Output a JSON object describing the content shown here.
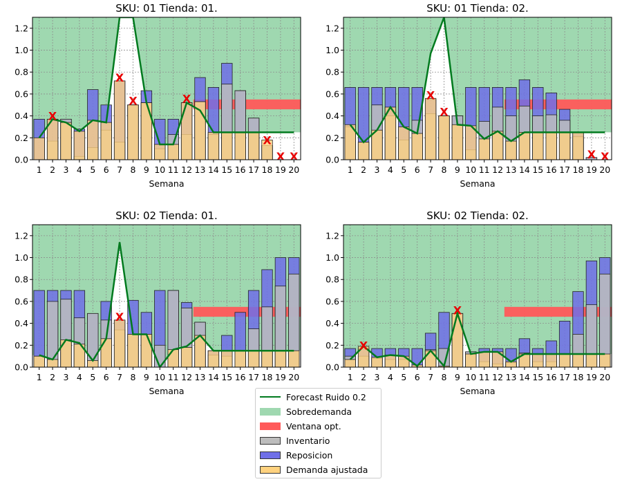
{
  "colors": {
    "forecast": "#007a1e",
    "overdemand": "#9fd8b0",
    "window": "#ff5a5a",
    "inventory": "#bdbdbd",
    "replenishment": "#6f6fe8",
    "demand": "#ffd27f",
    "marker": "#e80000",
    "grid": "#8c8c8c"
  },
  "legend": {
    "forecast": "Forecast Ruido 0.2",
    "overdemand": "Sobredemanda",
    "window": "Ventana opt.",
    "inventory": "Inventario",
    "replenishment": "Reposicion",
    "demand": "Demanda ajustada"
  },
  "marker_symbol": "X",
  "chart_data": [
    {
      "type": "bar",
      "title": "SKU: 01 Tienda: 01.",
      "xlabel": "Semana",
      "ylabel": "",
      "ylim": [
        0,
        1.3
      ],
      "yticks": [
        "0.0",
        "0.2",
        "0.4",
        "0.6",
        "0.8",
        "1.0",
        "1.2"
      ],
      "categories": [
        "1",
        "2",
        "3",
        "4",
        "5",
        "6",
        "7",
        "8",
        "9",
        "10",
        "11",
        "12",
        "13",
        "14",
        "15",
        "16",
        "17",
        "18",
        "19",
        "20"
      ],
      "grid": true,
      "window": {
        "from_week": 13,
        "to_week": 20,
        "low": 0.46,
        "high": 0.55
      },
      "series": [
        {
          "name": "Inventario",
          "values": [
            0.0,
            0.17,
            0.37,
            0.03,
            0.11,
            0.27,
            0.16,
            0.5,
            0.52,
            0.1,
            0.23,
            0.23,
            0.53,
            0.23,
            0.69,
            0.63,
            0.38,
            0.13,
            0.0,
            0.0
          ]
        },
        {
          "name": "Reposicion",
          "values": [
            0.37,
            0.37,
            0.37,
            0.28,
            0.64,
            0.5,
            0.72,
            0.5,
            0.63,
            0.37,
            0.37,
            0.52,
            0.75,
            0.66,
            0.88,
            0.63,
            0.38,
            0.13,
            0.0,
            0.0
          ]
        },
        {
          "name": "Demanda ajustada",
          "values": [
            0.2,
            0.37,
            0.34,
            0.26,
            0.36,
            0.34,
            0.72,
            0.5,
            0.52,
            0.14,
            0.14,
            0.52,
            0.53,
            0.25,
            0.25,
            0.25,
            0.25,
            0.18,
            0.0,
            0.0
          ]
        },
        {
          "name": "Forecast Ruido 0.2",
          "values": [
            0.2,
            0.37,
            0.34,
            0.26,
            0.36,
            0.34,
            1.3,
            1.4,
            0.52,
            0.14,
            0.14,
            0.52,
            0.45,
            0.25,
            0.25,
            0.25,
            0.25,
            0.25,
            0.25,
            0.25
          ]
        }
      ],
      "markers": [
        {
          "week": 2,
          "y": 0.4
        },
        {
          "week": 7,
          "y": 0.75
        },
        {
          "week": 8,
          "y": 0.54
        },
        {
          "week": 12,
          "y": 0.56
        },
        {
          "week": 18,
          "y": 0.18
        },
        {
          "week": 19,
          "y": 0.03
        },
        {
          "week": 20,
          "y": 0.03
        }
      ]
    },
    {
      "type": "bar",
      "title": "SKU: 01 Tienda: 02.",
      "xlabel": "Semana",
      "ylabel": "",
      "ylim": [
        0,
        1.3
      ],
      "yticks": [
        "0.0",
        "0.2",
        "0.4",
        "0.6",
        "0.8",
        "1.0",
        "1.2"
      ],
      "categories": [
        "1",
        "2",
        "3",
        "4",
        "5",
        "6",
        "7",
        "8",
        "9",
        "10",
        "11",
        "12",
        "13",
        "14",
        "15",
        "16",
        "17",
        "18",
        "19",
        "20"
      ],
      "grid": true,
      "window": {
        "from_week": 13,
        "to_week": 20,
        "low": 0.46,
        "high": 0.55
      },
      "series": [
        {
          "name": "Inventario",
          "values": [
            0.3,
            0.16,
            0.5,
            0.4,
            0.18,
            0.36,
            0.42,
            0.4,
            0.4,
            0.09,
            0.35,
            0.48,
            0.4,
            0.49,
            0.4,
            0.41,
            0.36,
            0.21,
            0.02,
            0.0
          ]
        },
        {
          "name": "Reposicion",
          "values": [
            0.66,
            0.66,
            0.66,
            0.66,
            0.66,
            0.66,
            0.55,
            0.4,
            0.4,
            0.66,
            0.66,
            0.66,
            0.66,
            0.73,
            0.66,
            0.61,
            0.46,
            0.25,
            0.02,
            0.0
          ]
        },
        {
          "name": "Demanda ajustada",
          "values": [
            0.32,
            0.16,
            0.27,
            0.48,
            0.3,
            0.24,
            0.56,
            0.4,
            0.32,
            0.31,
            0.19,
            0.26,
            0.17,
            0.25,
            0.25,
            0.25,
            0.25,
            0.25,
            0.0,
            0.0
          ]
        },
        {
          "name": "Forecast Ruido 0.2",
          "values": [
            0.32,
            0.16,
            0.27,
            0.48,
            0.3,
            0.24,
            0.97,
            1.3,
            0.32,
            0.31,
            0.19,
            0.26,
            0.17,
            0.25,
            0.25,
            0.25,
            0.25,
            0.25,
            0.25,
            0.25
          ]
        }
      ],
      "markers": [
        {
          "week": 7,
          "y": 0.59
        },
        {
          "week": 8,
          "y": 0.44
        },
        {
          "week": 19,
          "y": 0.05
        },
        {
          "week": 20,
          "y": 0.03
        }
      ]
    },
    {
      "type": "bar",
      "title": "SKU: 02 Tienda: 01.",
      "xlabel": "Semana",
      "ylabel": "",
      "ylim": [
        0,
        1.3
      ],
      "yticks": [
        "0.0",
        "0.2",
        "0.4",
        "0.6",
        "0.8",
        "1.0",
        "1.2"
      ],
      "categories": [
        "1",
        "2",
        "3",
        "4",
        "5",
        "6",
        "7",
        "8",
        "9",
        "10",
        "11",
        "12",
        "13",
        "14",
        "15",
        "16",
        "17",
        "18",
        "19",
        "20"
      ],
      "grid": true,
      "window": {
        "from_week": 13,
        "to_week": 20,
        "low": 0.46,
        "high": 0.55
      },
      "series": [
        {
          "name": "Inventario",
          "values": [
            0.1,
            0.6,
            0.62,
            0.45,
            0.49,
            0.43,
            0.34,
            0.3,
            0.3,
            0.2,
            0.7,
            0.54,
            0.41,
            0.11,
            0.1,
            0.15,
            0.35,
            0.55,
            0.74,
            0.85
          ]
        },
        {
          "name": "Reposicion",
          "values": [
            0.7,
            0.7,
            0.7,
            0.7,
            0.49,
            0.6,
            0.43,
            0.61,
            0.5,
            0.7,
            0.7,
            0.59,
            0.41,
            0.15,
            0.29,
            0.5,
            0.7,
            0.89,
            1.0,
            1.0
          ]
        },
        {
          "name": "Demanda ajustada",
          "values": [
            0.1,
            0.07,
            0.25,
            0.21,
            0.06,
            0.26,
            0.43,
            0.3,
            0.3,
            0.0,
            0.16,
            0.18,
            0.29,
            0.15,
            0.15,
            0.15,
            0.15,
            0.15,
            0.15,
            0.15
          ]
        },
        {
          "name": "Forecast Ruido 0.2",
          "values": [
            0.11,
            0.07,
            0.25,
            0.22,
            0.06,
            0.26,
            1.14,
            0.3,
            0.3,
            0.0,
            0.16,
            0.19,
            0.29,
            0.15,
            0.15,
            0.15,
            0.15,
            0.15,
            0.15,
            0.15
          ]
        }
      ],
      "markers": [
        {
          "week": 7,
          "y": 0.46
        }
      ]
    },
    {
      "type": "bar",
      "title": "SKU: 02 Tienda: 02.",
      "xlabel": "Semana",
      "ylabel": "",
      "ylim": [
        0,
        1.3
      ],
      "yticks": [
        "0.0",
        "0.2",
        "0.4",
        "0.6",
        "0.8",
        "1.0",
        "1.2"
      ],
      "categories": [
        "1",
        "2",
        "3",
        "4",
        "5",
        "6",
        "7",
        "8",
        "9",
        "10",
        "11",
        "12",
        "13",
        "14",
        "15",
        "16",
        "17",
        "18",
        "19",
        "20"
      ],
      "grid": true,
      "window": {
        "from_week": 13,
        "to_week": 20,
        "low": 0.46,
        "high": 0.55
      },
      "series": [
        {
          "name": "Inventario",
          "values": [
            0.1,
            0.1,
            0.08,
            0.07,
            0.07,
            0.0,
            0.16,
            0.17,
            0.49,
            0.14,
            0.05,
            0.03,
            0.04,
            0.13,
            0.05,
            0.05,
            0.12,
            0.3,
            0.57,
            0.85
          ]
        },
        {
          "name": "Reposicion",
          "values": [
            0.17,
            0.17,
            0.17,
            0.17,
            0.17,
            0.17,
            0.31,
            0.5,
            0.49,
            0.14,
            0.17,
            0.17,
            0.17,
            0.26,
            0.17,
            0.24,
            0.42,
            0.69,
            0.97,
            1.0
          ]
        },
        {
          "name": "Demanda ajustada",
          "values": [
            0.07,
            0.19,
            0.09,
            0.11,
            0.1,
            0.02,
            0.15,
            0.01,
            0.49,
            0.12,
            0.14,
            0.14,
            0.05,
            0.12,
            0.12,
            0.12,
            0.12,
            0.12,
            0.12,
            0.12
          ]
        },
        {
          "name": "Forecast Ruido 0.2",
          "values": [
            0.07,
            0.19,
            0.09,
            0.11,
            0.1,
            0.01,
            0.15,
            0.01,
            0.49,
            0.12,
            0.14,
            0.14,
            0.05,
            0.12,
            0.12,
            0.12,
            0.12,
            0.12,
            0.12,
            0.12
          ]
        }
      ],
      "markers": [
        {
          "week": 2,
          "y": 0.2
        },
        {
          "week": 9,
          "y": 0.52
        }
      ]
    }
  ]
}
